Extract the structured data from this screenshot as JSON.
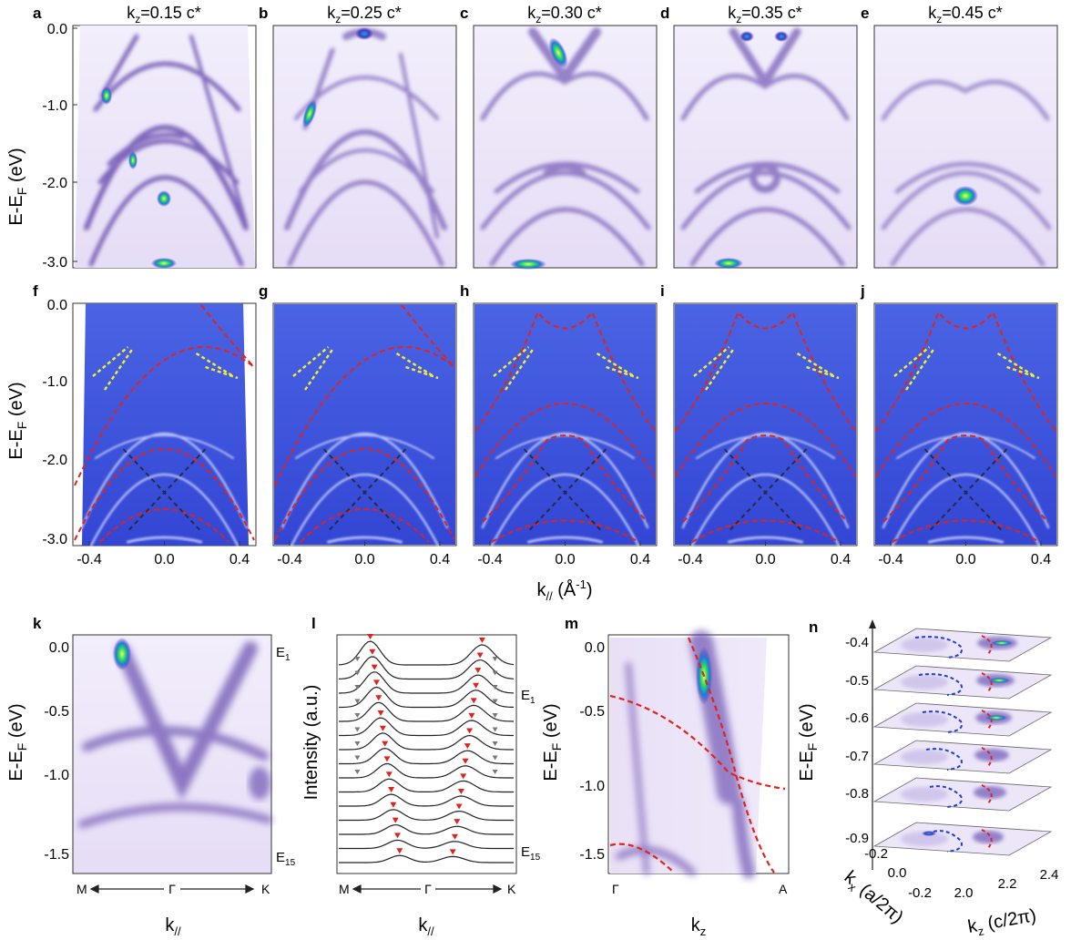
{
  "figure": {
    "row1": {
      "panels": [
        {
          "letter": "a",
          "title_pre": "k",
          "title_sub": "z",
          "title_post": "=0.15 c*"
        },
        {
          "letter": "b",
          "title_pre": "k",
          "title_sub": "z",
          "title_post": "=0.25 c*"
        },
        {
          "letter": "c",
          "title_pre": "k",
          "title_sub": "z",
          "title_post": "=0.30 c*"
        },
        {
          "letter": "d",
          "title_pre": "k",
          "title_sub": "z",
          "title_post": "=0.35 c*"
        },
        {
          "letter": "e",
          "title_pre": "k",
          "title_sub": "z",
          "title_post": "=0.45 c*"
        }
      ],
      "ylabel_main": "E-E",
      "ylabel_sub": "F",
      "ylabel_tail": " (eV)",
      "yticks": [
        "0.0",
        "-1.0",
        "-2.0",
        "-3.0"
      ]
    },
    "row2": {
      "panels": [
        {
          "letter": "f"
        },
        {
          "letter": "g"
        },
        {
          "letter": "h"
        },
        {
          "letter": "i"
        },
        {
          "letter": "j"
        }
      ],
      "ylabel_main": "E-E",
      "ylabel_sub": "F",
      "ylabel_tail": " (eV)",
      "yticks": [
        "0.0",
        "-1.0",
        "-2.0",
        "-3.0"
      ],
      "xticks": [
        "-0.4",
        "0.0",
        "0.4"
      ],
      "xlabel_main": "k",
      "xlabel_sub": "//",
      "xlabel_tail": " (Å",
      "xlabel_sup": "-1",
      "xlabel_end": ")"
    },
    "panel_k": {
      "letter": "k",
      "yticks": [
        "0.0",
        "-0.5",
        "-1.0",
        "-1.5"
      ],
      "ylabel_main": "E-E",
      "ylabel_sub": "F",
      "ylabel_tail": " (eV)",
      "e1_main": "E",
      "e1_sub": "1",
      "e15_main": "E",
      "e15_sub": "15",
      "xM": "M",
      "xG": "Γ",
      "xK": "K",
      "xlabel_main": "k",
      "xlabel_sub": "//"
    },
    "panel_l": {
      "letter": "l",
      "ylabel": "Intensity (a.u.)",
      "e1_main": "E",
      "e1_sub": "1",
      "e15_main": "E",
      "e15_sub": "15",
      "xM": "M",
      "xG": "Γ",
      "xK": "K",
      "xlabel_main": "k",
      "xlabel_sub": "//"
    },
    "panel_m": {
      "letter": "m",
      "yticks": [
        "0.0",
        "-0.5",
        "-1.0",
        "-1.5"
      ],
      "ylabel_main": "E-E",
      "ylabel_sub": "F",
      "ylabel_tail": " (eV)",
      "xG": "Γ",
      "xA": "A",
      "xlabel_main": "k",
      "xlabel_sub": "z"
    },
    "panel_n": {
      "letter": "n",
      "zticks": [
        "-0.4",
        "-0.5",
        "-0.6",
        "-0.7",
        "-0.8",
        "-0.9"
      ],
      "ylabel_main": "E-E",
      "ylabel_sub": "F",
      "ylabel_tail": " (eV)",
      "kx_ticks": [
        "-0.2",
        "0.0",
        "-0.2"
      ],
      "kx_main": "k",
      "kx_sub": "x",
      "kx_tail": " (a/2π)",
      "kz_ticks": [
        "2.0",
        "2.2",
        "2.4"
      ],
      "kz_main": "k",
      "kz_sub": "z",
      "kz_tail": " (c/2π)"
    },
    "colors": {
      "arpes_purple": "#5b3ea8",
      "curvature_blue": "#2f47d6",
      "fit_red": "#e0231b",
      "fit_yellow": "#f2ef33",
      "fit_black": "#222222"
    }
  }
}
